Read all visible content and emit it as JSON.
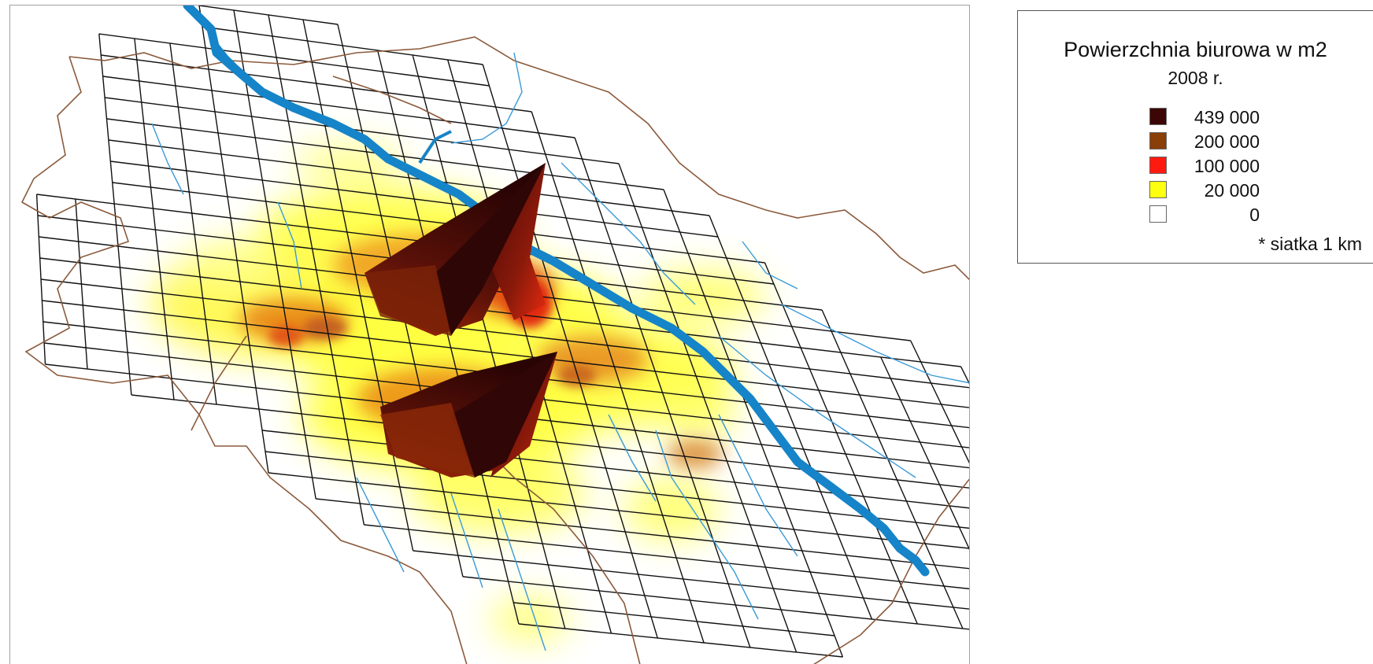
{
  "legend": {
    "title": "Powierzchnia biurowa w m2",
    "subtitle": "2008 r.",
    "items": [
      {
        "label": "439 000",
        "color": "#3d0606"
      },
      {
        "label": "200 000",
        "color": "#8a3e08"
      },
      {
        "label": "100 000",
        "color": "#ff1a10"
      },
      {
        "label": "20 000",
        "color": "#ffff10"
      },
      {
        "label": "0",
        "color": "#ffffff"
      }
    ],
    "note": "* siatka 1 km"
  },
  "map": {
    "colors": {
      "grid": "#111111",
      "boundary": "#8b5a3c",
      "river": "#1684c8",
      "streams": "#3a9ad8"
    },
    "peaks": [
      {
        "name": "north-peak",
        "value": 439000
      },
      {
        "name": "south-peak",
        "value": 300000
      }
    ]
  }
}
